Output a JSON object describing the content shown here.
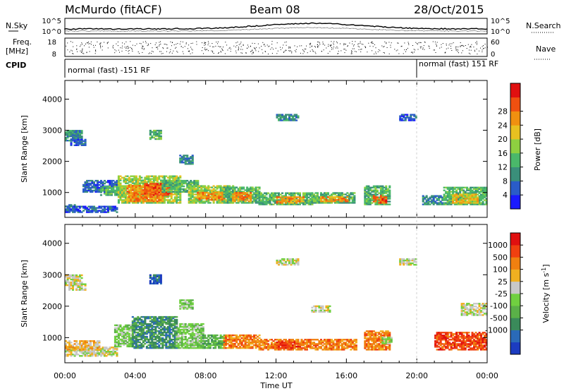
{
  "header": {
    "site": "McMurdo (fitACF)",
    "beam": "Beam 08",
    "date": "28/Oct/2015"
  },
  "top_panels": {
    "nsky_label": "N.Sky",
    "nsearch_label": "N.Search",
    "noise_ticks": [
      "10^5",
      "10^0"
    ],
    "noise_ticks_right": [
      "10^5",
      "10^0"
    ],
    "freq_label": "Freq.",
    "freq_unit": "[MHz]",
    "freq_ticks": [
      "18",
      "8"
    ],
    "nave_label": "Nave",
    "nave_ticks": [
      "60",
      "0"
    ],
    "cpid_label": "CPID",
    "cpid_segments": [
      {
        "text": "normal (fast) -151 RF",
        "start_hour": 0,
        "end_hour": 20
      },
      {
        "text": "normal (fast) 151 RF",
        "start_hour": 20,
        "end_hour": 24
      }
    ]
  },
  "chart_data": [
    {
      "type": "heatmap",
      "name": "power",
      "ylabel": "Slant Range [km]",
      "xlim_hours": [
        0,
        24
      ],
      "ylim": [
        200,
        4600
      ],
      "yticks": [
        1000,
        2000,
        3000,
        4000
      ],
      "ytick_labels": [
        "1000",
        "2000",
        "3000",
        "4000"
      ],
      "colorbar": {
        "label": "Power [dB]",
        "tick_labels": [
          "4",
          "8",
          "12",
          "16",
          "20",
          "24",
          "28"
        ],
        "colors": [
          "#1a1aff",
          "#2a5cc8",
          "#3a8f7a",
          "#4ab86a",
          "#8ed040",
          "#e8c020",
          "#f09010",
          "#f05010",
          "#e01010"
        ],
        "range": [
          0,
          32
        ]
      },
      "blobs": [
        {
          "t0": 0.0,
          "t1": 0.9,
          "r0": 2650,
          "r1": 3000,
          "level": 2
        },
        {
          "t0": 0.3,
          "t1": 1.2,
          "r0": 2500,
          "r1": 2700,
          "level": 1
        },
        {
          "t0": 0.0,
          "t1": 0.6,
          "r0": 400,
          "r1": 600,
          "level": 2
        },
        {
          "t0": 0.0,
          "t1": 3.0,
          "r0": 350,
          "r1": 550,
          "level": 1
        },
        {
          "t0": 1.0,
          "t1": 3.0,
          "r0": 1000,
          "r1": 1400,
          "level": 1
        },
        {
          "t0": 2.0,
          "t1": 3.5,
          "r0": 900,
          "r1": 1200,
          "level": 3
        },
        {
          "t0": 3.0,
          "t1": 6.5,
          "r0": 650,
          "r1": 1550,
          "level": 4
        },
        {
          "t0": 3.5,
          "t1": 5.5,
          "r0": 700,
          "r1": 1200,
          "level": 6
        },
        {
          "t0": 4.5,
          "t1": 6.0,
          "r0": 900,
          "r1": 1300,
          "level": 7
        },
        {
          "t0": 4.8,
          "t1": 5.4,
          "r0": 2700,
          "r1": 3000,
          "level": 3
        },
        {
          "t0": 5.5,
          "t1": 7.5,
          "r0": 1000,
          "r1": 1400,
          "level": 3
        },
        {
          "t0": 6.5,
          "t1": 7.2,
          "r0": 1900,
          "r1": 2200,
          "level": 2
        },
        {
          "t0": 7.0,
          "t1": 9.5,
          "r0": 650,
          "r1": 1200,
          "level": 4
        },
        {
          "t0": 7.5,
          "t1": 9.0,
          "r0": 750,
          "r1": 1000,
          "level": 6
        },
        {
          "t0": 9.0,
          "t1": 11.0,
          "r0": 650,
          "r1": 1150,
          "level": 3
        },
        {
          "t0": 9.5,
          "t1": 10.5,
          "r0": 700,
          "r1": 1000,
          "level": 6
        },
        {
          "t0": 11.0,
          "t1": 14.0,
          "r0": 600,
          "r1": 1000,
          "level": 3
        },
        {
          "t0": 12.0,
          "t1": 13.5,
          "r0": 650,
          "r1": 850,
          "level": 6
        },
        {
          "t0": 12.0,
          "t1": 13.2,
          "r0": 3300,
          "r1": 3500,
          "level": 2
        },
        {
          "t0": 14.0,
          "t1": 16.5,
          "r0": 650,
          "r1": 1000,
          "level": 3
        },
        {
          "t0": 14.5,
          "t1": 16.0,
          "r0": 700,
          "r1": 850,
          "level": 6
        },
        {
          "t0": 17.0,
          "t1": 18.5,
          "r0": 600,
          "r1": 1200,
          "level": 3
        },
        {
          "t0": 17.5,
          "t1": 18.3,
          "r0": 650,
          "r1": 900,
          "level": 7
        },
        {
          "t0": 19.0,
          "t1": 20.0,
          "r0": 3300,
          "r1": 3500,
          "level": 1
        },
        {
          "t0": 20.3,
          "t1": 21.5,
          "r0": 600,
          "r1": 900,
          "level": 2
        },
        {
          "t0": 21.5,
          "t1": 24.0,
          "r0": 600,
          "r1": 1150,
          "level": 3
        },
        {
          "t0": 22.0,
          "t1": 23.5,
          "r0": 650,
          "r1": 950,
          "level": 5
        }
      ]
    },
    {
      "type": "heatmap",
      "name": "velocity",
      "ylabel": "Slant Range [km]",
      "xlabel": "Time UT",
      "xlim_hours": [
        0,
        24
      ],
      "xticks_hours": [
        0,
        4,
        8,
        12,
        16,
        20,
        24
      ],
      "xtick_labels": [
        "00:00",
        "04:00",
        "08:00",
        "12:00",
        "16:00",
        "20:00",
        "00:00"
      ],
      "ylim": [
        200,
        4600
      ],
      "yticks": [
        1000,
        2000,
        3000,
        4000
      ],
      "ytick_labels": [
        "1000",
        "2000",
        "3000",
        "4000"
      ],
      "colorbar": {
        "label": "Velocity [m s^-1]",
        "tick_labels": [
          "1000",
          "500",
          "100",
          "25",
          "-25",
          "-100",
          "-500",
          "-1000"
        ],
        "colors": [
          "#1c3cc0",
          "#2a6ab8",
          "#3a8a5a",
          "#5ab048",
          "#70d040",
          "#c8c8c8",
          "#f0b020",
          "#f08010",
          "#f04010",
          "#e01010"
        ]
      },
      "blobs": [
        {
          "t0": 0.0,
          "t1": 0.9,
          "r0": 2650,
          "r1": 3000,
          "level": 5
        },
        {
          "t0": 0.2,
          "t1": 1.2,
          "r0": 2500,
          "r1": 2700,
          "level": 5
        },
        {
          "t0": 0.0,
          "t1": 3.0,
          "r0": 400,
          "r1": 700,
          "level": 5
        },
        {
          "t0": 0.0,
          "t1": 2.0,
          "r0": 600,
          "r1": 900,
          "level": 6
        },
        {
          "t0": 2.8,
          "t1": 4.0,
          "r0": 700,
          "r1": 1400,
          "level": 4
        },
        {
          "t0": 3.8,
          "t1": 6.3,
          "r0": 650,
          "r1": 1650,
          "level": 2
        },
        {
          "t0": 4.8,
          "t1": 5.4,
          "r0": 2700,
          "r1": 3000,
          "level": 1
        },
        {
          "t0": 6.3,
          "t1": 7.8,
          "r0": 650,
          "r1": 1450,
          "level": 4
        },
        {
          "t0": 6.5,
          "t1": 7.2,
          "r0": 1900,
          "r1": 2200,
          "level": 4
        },
        {
          "t0": 7.8,
          "t1": 9.0,
          "r0": 650,
          "r1": 1100,
          "level": 3
        },
        {
          "t0": 9.0,
          "t1": 11.0,
          "r0": 650,
          "r1": 1100,
          "level": 7
        },
        {
          "t0": 11.0,
          "t1": 16.5,
          "r0": 600,
          "r1": 950,
          "level": 7
        },
        {
          "t0": 12.0,
          "t1": 13.5,
          "r0": 650,
          "r1": 850,
          "level": 8
        },
        {
          "t0": 12.0,
          "t1": 13.2,
          "r0": 3300,
          "r1": 3500,
          "level": 5
        },
        {
          "t0": 14.0,
          "t1": 15.0,
          "r0": 1800,
          "r1": 2000,
          "level": 5
        },
        {
          "t0": 17.0,
          "t1": 18.5,
          "r0": 600,
          "r1": 1200,
          "level": 7
        },
        {
          "t0": 18.0,
          "t1": 18.6,
          "r0": 800,
          "r1": 1000,
          "level": 4
        },
        {
          "t0": 19.0,
          "t1": 20.0,
          "r0": 3300,
          "r1": 3500,
          "level": 5
        },
        {
          "t0": 21.0,
          "t1": 24.0,
          "r0": 600,
          "r1": 1150,
          "level": 8
        },
        {
          "t0": 22.5,
          "t1": 24.0,
          "r0": 1700,
          "r1": 2100,
          "level": 5
        }
      ]
    }
  ]
}
